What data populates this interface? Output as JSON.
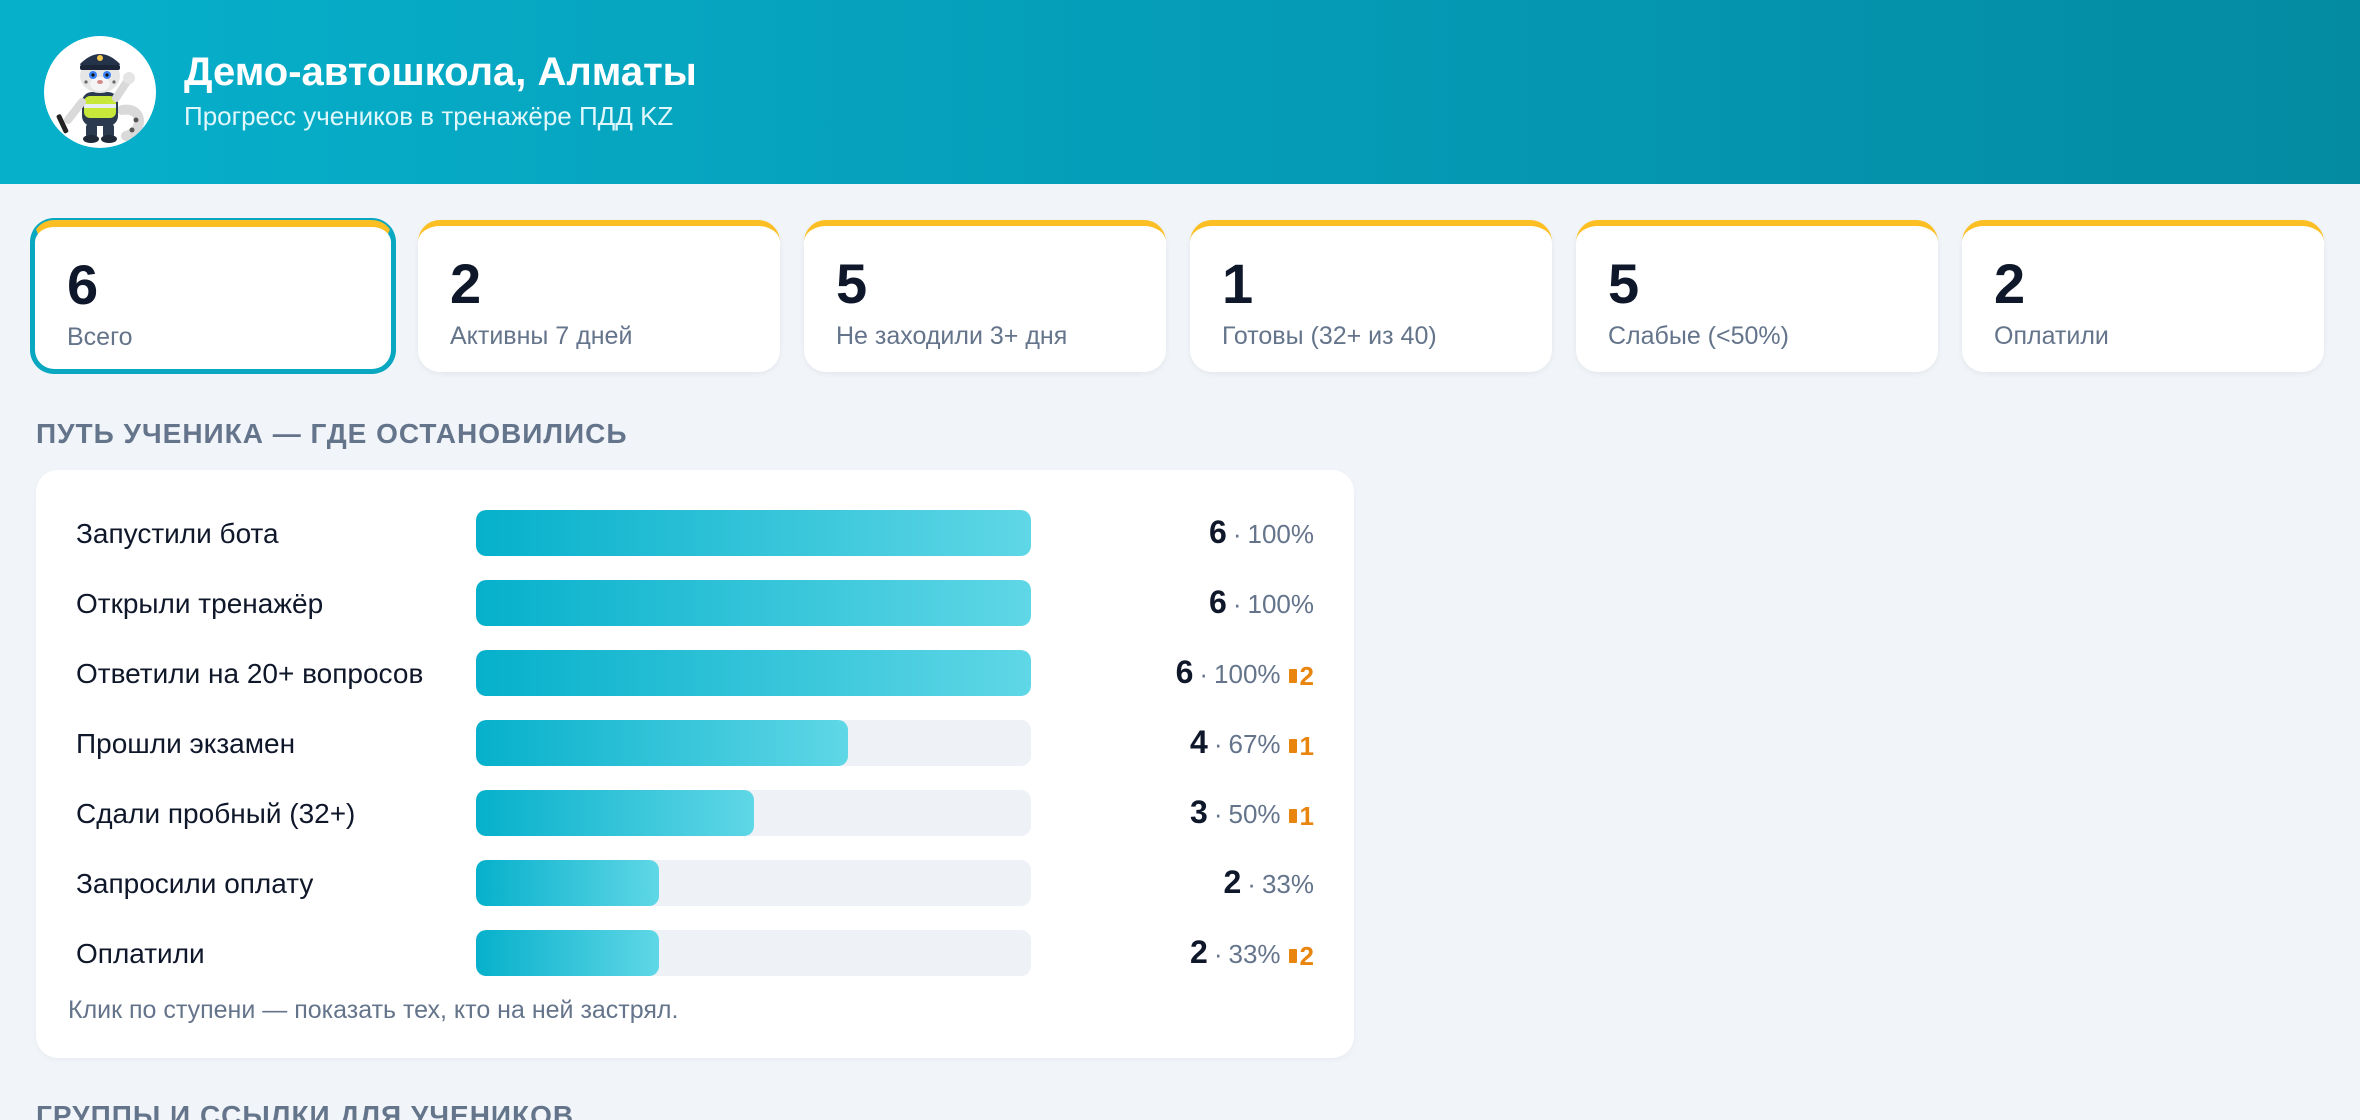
{
  "header": {
    "title": "Демо-автошкола, Алматы",
    "subtitle": "Прогресс учеников в тренажёре ПДД KZ",
    "avatar_icon": "snow-leopard-mascot-icon"
  },
  "stats": [
    {
      "value": "6",
      "label": "Всего",
      "selected": true
    },
    {
      "value": "2",
      "label": "Активны 7 дней"
    },
    {
      "value": "5",
      "label": "Не заходили 3+ дня"
    },
    {
      "value": "1",
      "label": "Готовы (32+ из 40)"
    },
    {
      "value": "5",
      "label": "Слабые (<50%)"
    },
    {
      "value": "2",
      "label": "Оплатили"
    }
  ],
  "funnel": {
    "title": "ПУТЬ УЧЕНИКА — ГДЕ ОСТАНОВИЛИСЬ",
    "hint": "Клик по ступени — показать тех, кто на ней застрял.",
    "separator": "·",
    "steps": [
      {
        "label": "Запустили бота",
        "count": "6",
        "percent": "100%",
        "fraction": 1.0,
        "stuck": ""
      },
      {
        "label": "Открыли тренажёр",
        "count": "6",
        "percent": "100%",
        "fraction": 1.0,
        "stuck": ""
      },
      {
        "label": "Ответили на 20+ вопросов",
        "count": "6",
        "percent": "100%",
        "fraction": 1.0,
        "stuck": "2"
      },
      {
        "label": "Прошли экзамен",
        "count": "4",
        "percent": "67%",
        "fraction": 0.67,
        "stuck": "1"
      },
      {
        "label": "Сдали пробный (32+)",
        "count": "3",
        "percent": "50%",
        "fraction": 0.5,
        "stuck": "1"
      },
      {
        "label": "Запросили оплату",
        "count": "2",
        "percent": "33%",
        "fraction": 0.33,
        "stuck": ""
      },
      {
        "label": "Оплатили",
        "count": "2",
        "percent": "33%",
        "fraction": 0.33,
        "stuck": "2"
      }
    ]
  },
  "groups": {
    "title": "ГРУППЫ И ССЫЛКИ ДЛЯ УЧЕНИКОВ"
  },
  "colors": {
    "accent": "#06b0cb",
    "card_top": "#fbbf24",
    "stuck": "#e8850e"
  }
}
